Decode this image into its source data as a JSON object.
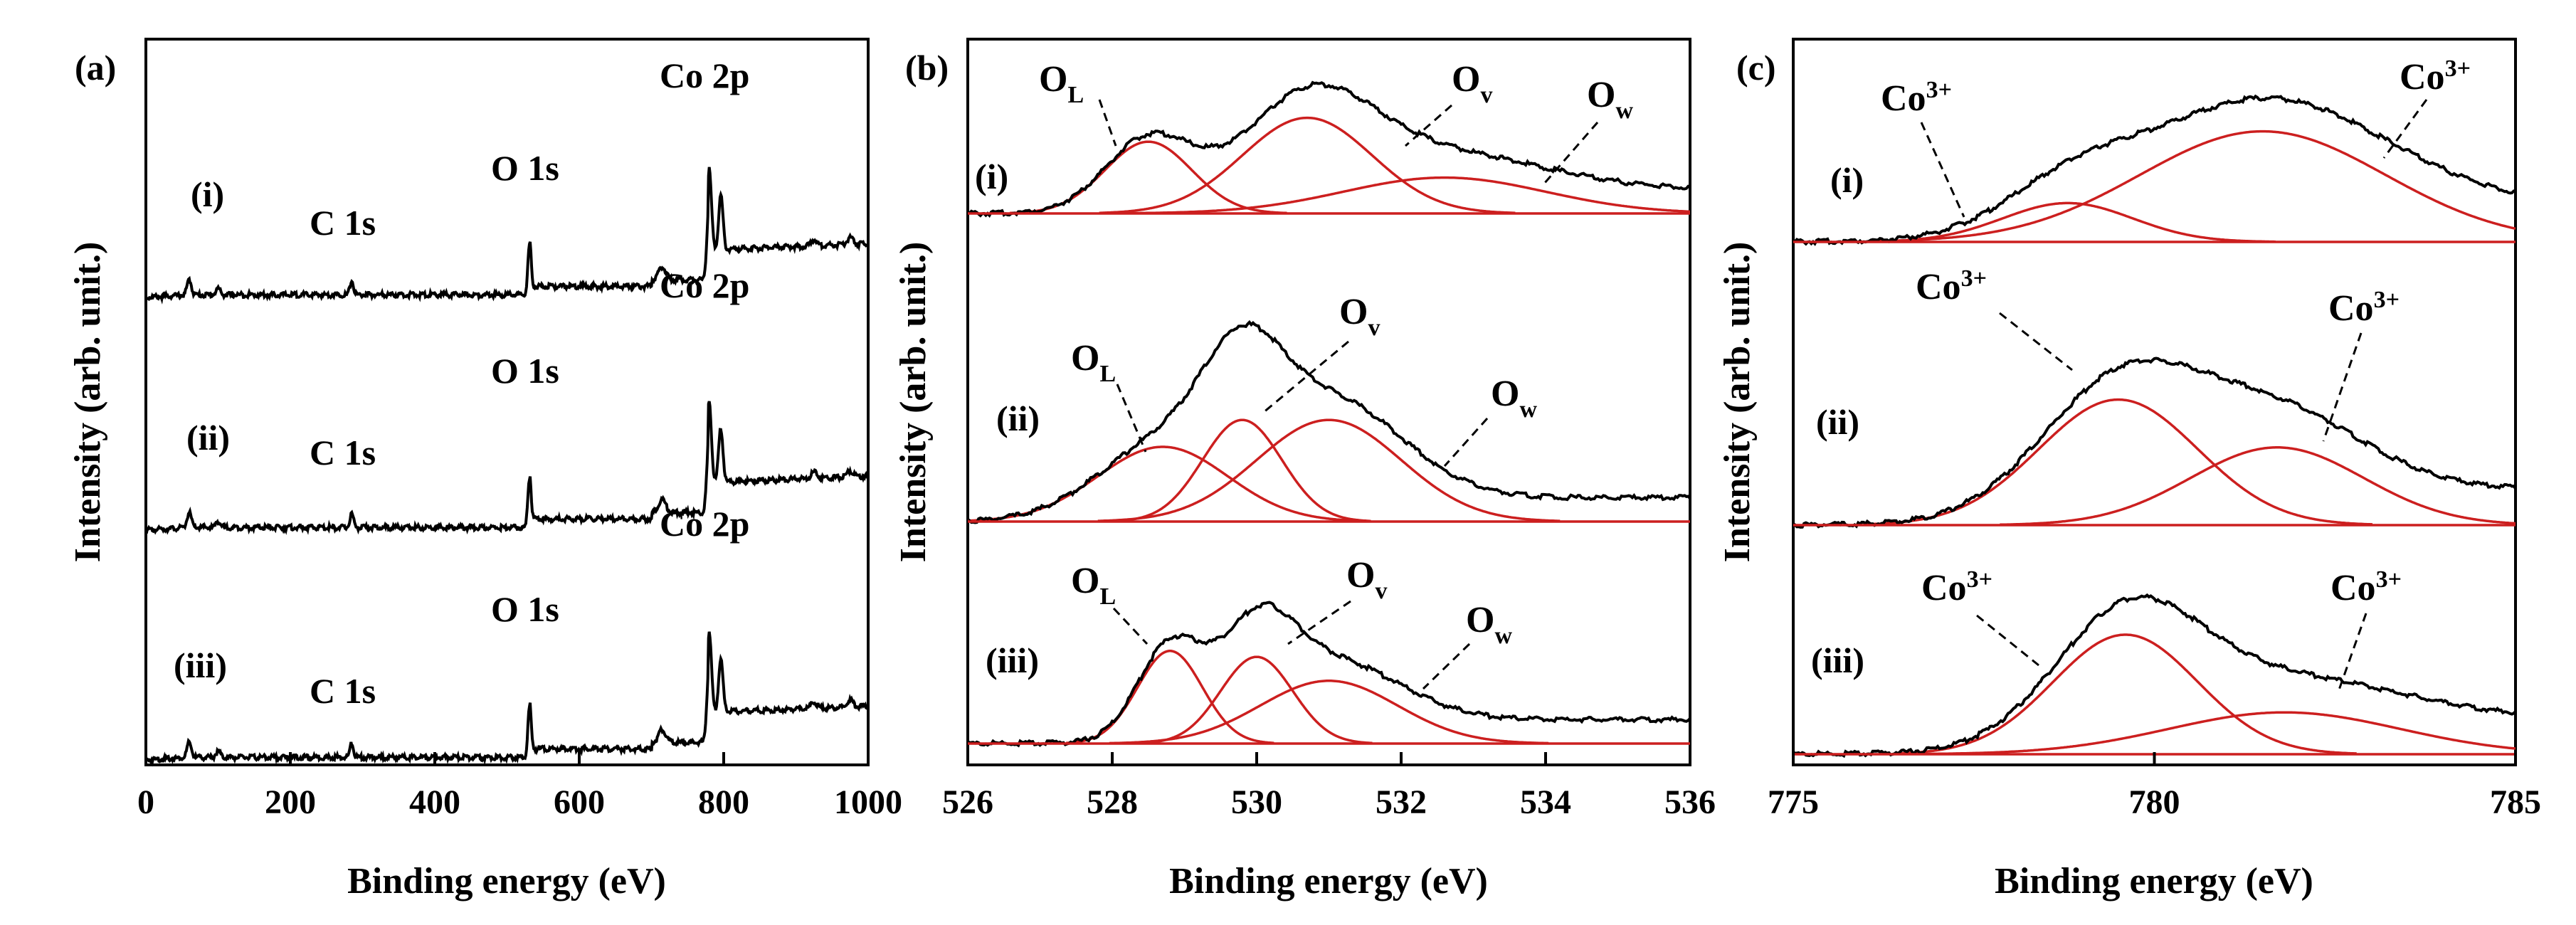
{
  "chart_data": [
    {
      "type": "line",
      "panel": "(a)",
      "xlabel": "Binding energy (eV)",
      "ylabel": "Intensity (arb. unit.)",
      "xlim": [
        0,
        1000
      ],
      "xticks": [
        "0",
        "200",
        "400",
        "600",
        "800",
        "1000"
      ],
      "yticks": false,
      "series": [
        {
          "name": "(i)",
          "peaks": [
            {
              "label": "C 1s",
              "x": 285
            },
            {
              "label": "O 1s",
              "x": 531
            },
            {
              "label": "Co 2p",
              "x": 780
            }
          ]
        },
        {
          "name": "(ii)",
          "peaks": [
            {
              "label": "C 1s",
              "x": 285
            },
            {
              "label": "O 1s",
              "x": 531
            },
            {
              "label": "Co 2p",
              "x": 780
            }
          ]
        },
        {
          "name": "(iii)",
          "peaks": [
            {
              "label": "C 1s",
              "x": 285
            },
            {
              "label": "O 1s",
              "x": 531
            },
            {
              "label": "Co 2p",
              "x": 780
            }
          ]
        }
      ]
    },
    {
      "type": "line",
      "panel": "(b)",
      "xlabel": "Binding energy (eV)",
      "ylabel": "Intensity (arb. unit.)",
      "xlim": [
        526,
        536
      ],
      "xticks": [
        "526",
        "528",
        "530",
        "532",
        "534",
        "536"
      ],
      "yticks": false,
      "series": [
        {
          "name": "(i)",
          "components": [
            {
              "label_main": "O",
              "label_sub": "L",
              "center": 528.5,
              "width": 0.6,
              "height": 0.24
            },
            {
              "label_main": "O",
              "label_sub": "v",
              "center": 530.7,
              "width": 0.9,
              "height": 0.32
            },
            {
              "label_main": "O",
              "label_sub": "w",
              "center": 532.6,
              "width": 1.4,
              "height": 0.12
            }
          ]
        },
        {
          "name": "(ii)",
          "components": [
            {
              "label_main": "O",
              "label_sub": "L",
              "center": 528.7,
              "width": 0.9,
              "height": 0.25
            },
            {
              "label_main": "O",
              "label_sub": "v",
              "center": 529.8,
              "width": 0.55,
              "height": 0.34
            },
            {
              "label_main": "O",
              "label_sub": "w",
              "center": 531.0,
              "width": 1.0,
              "height": 0.34
            }
          ]
        },
        {
          "name": "(iii)",
          "components": [
            {
              "label_main": "O",
              "label_sub": "L",
              "center": 528.8,
              "width": 0.45,
              "height": 0.31
            },
            {
              "label_main": "O",
              "label_sub": "v",
              "center": 530.0,
              "width": 0.5,
              "height": 0.29
            },
            {
              "label_main": "O",
              "label_sub": "w",
              "center": 531.0,
              "width": 0.95,
              "height": 0.21
            }
          ]
        }
      ]
    },
    {
      "type": "line",
      "panel": "(c)",
      "xlabel": "Binding energy (eV)",
      "ylabel": "Intensity (arb. unit.)",
      "xlim": [
        775,
        785
      ],
      "xticks": [
        "775",
        "780",
        "785"
      ],
      "yticks": false,
      "series": [
        {
          "name": "(i)",
          "components": [
            {
              "label_main": "Co",
              "label_sup": "3+",
              "center": 778.8,
              "width": 0.9,
              "height": 0.13
            },
            {
              "label_main": "Co",
              "label_sup": "3+",
              "center": 781.5,
              "width": 1.7,
              "height": 0.37
            }
          ]
        },
        {
          "name": "(ii)",
          "components": [
            {
              "label_main": "Co",
              "label_sup": "3+",
              "center": 779.5,
              "width": 1.1,
              "height": 0.42
            },
            {
              "label_main": "Co",
              "label_sup": "3+",
              "center": 781.7,
              "width": 1.2,
              "height": 0.26
            }
          ]
        },
        {
          "name": "(iii)",
          "components": [
            {
              "label_main": "Co",
              "label_sup": "3+",
              "center": 779.6,
              "width": 1.0,
              "height": 0.4
            },
            {
              "label_main": "Co",
              "label_sup": "3+",
              "center": 781.8,
              "width": 1.6,
              "height": 0.14
            }
          ]
        }
      ]
    }
  ],
  "colors": {
    "experimental": "#000000",
    "fit": "#cc1f1f"
  }
}
